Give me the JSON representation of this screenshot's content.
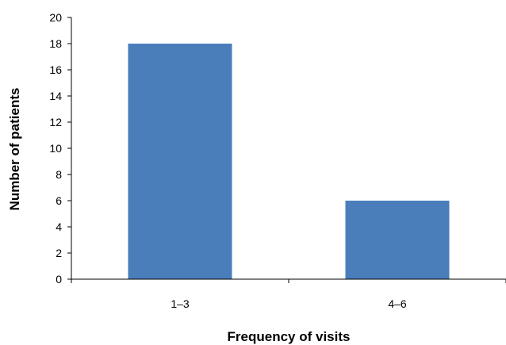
{
  "chart_data": {
    "type": "bar",
    "title": "",
    "xlabel": "Frequency of visits",
    "ylabel": "Number of patients",
    "categories": [
      "1–3",
      "4–6"
    ],
    "values": [
      18,
      6
    ],
    "ylim": [
      0,
      20
    ],
    "yticks": [
      0,
      2,
      4,
      6,
      8,
      10,
      12,
      14,
      16,
      18,
      20
    ],
    "grid": false,
    "legend": "none",
    "bar_color": "#4a7ebb"
  }
}
